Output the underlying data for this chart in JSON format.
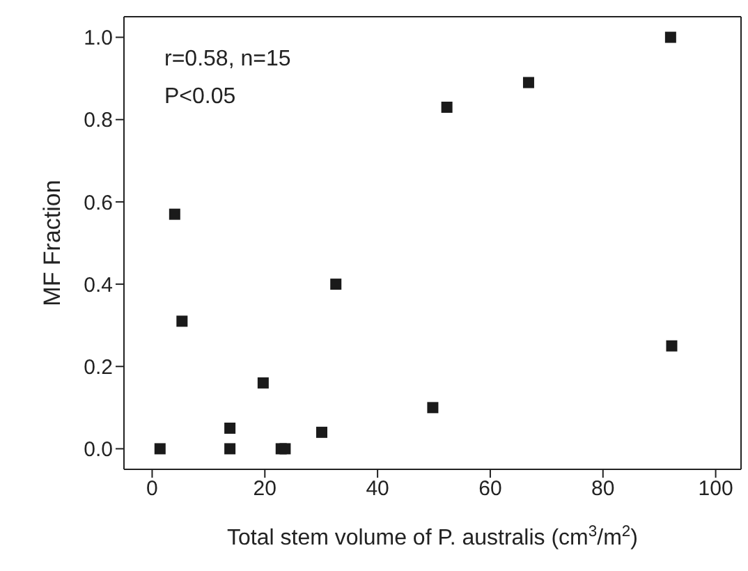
{
  "chart_data": {
    "type": "scatter",
    "xlabel": "Total stem volume of P. australis (cm$^{3}$/m$^{2}$)",
    "ylabel": "MF Fraction",
    "annotations": [
      "r=0.58, n=15",
      "P<0.05"
    ],
    "x": [
      1.4,
      4.0,
      5.3,
      19.7,
      13.8,
      13.8,
      22.9,
      23.6,
      30.1,
      32.6,
      49.8,
      52.3,
      66.8,
      92.0,
      92.2
    ],
    "series": [
      {
        "color": "#1a1a1a",
        "values": [
          0,
          0.57,
          0.31,
          0.16,
          0.05,
          0,
          0,
          0,
          0.04,
          0.4,
          0.1,
          0.83,
          0.89,
          1.0,
          0.25
        ]
      }
    ],
    "xlim": [
      -5,
      104.5
    ],
    "ylim": [
      -0.05,
      1.05
    ],
    "xticks": [
      0,
      20,
      40,
      60,
      80,
      100
    ],
    "yticks": [
      {
        "value": 0,
        "label": "0.0"
      },
      0.2,
      0.4,
      0.6,
      0.8,
      {
        "value": 1,
        "label": "1.0"
      }
    ],
    "marker": "square"
  }
}
